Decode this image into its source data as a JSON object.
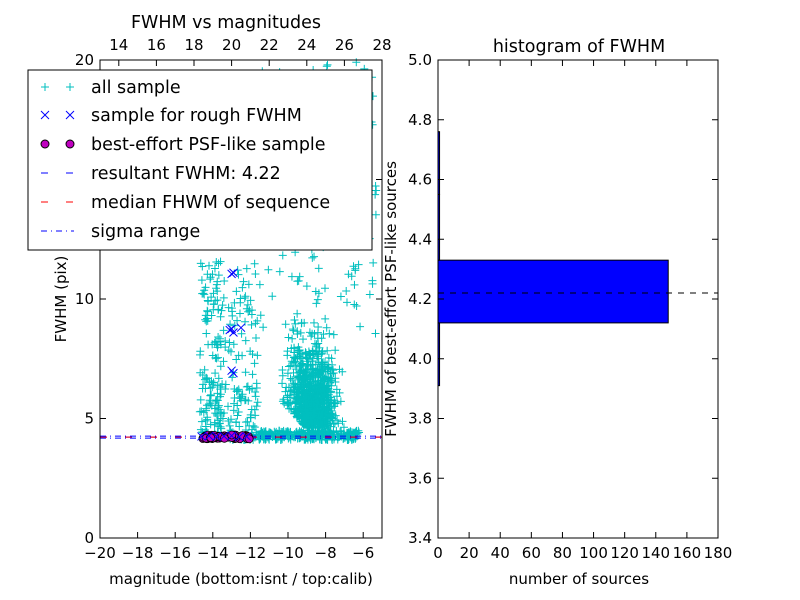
{
  "chart_data": [
    {
      "type": "scatter",
      "title": "FWHM vs magnitudes",
      "xlabel": "magnitude (bottom:isnt / top:calib)",
      "ylabel": "FWHM (pix)",
      "xlim": [
        -20,
        -5
      ],
      "ylim": [
        0,
        20
      ],
      "xticks": [
        -20,
        -18,
        -16,
        -14,
        -12,
        -10,
        -8,
        -6
      ],
      "xtick_labels": [
        "−20",
        "−18",
        "−16",
        "−14",
        "−12",
        "−10",
        "−8",
        "−6"
      ],
      "yticks": [
        0,
        5,
        10,
        15,
        20
      ],
      "ytick_labels": [
        "0",
        "5",
        "10",
        "15",
        "20"
      ],
      "top_xlim": [
        13,
        28
      ],
      "top_xticks": [
        14,
        16,
        18,
        20,
        22,
        24,
        26,
        28
      ],
      "top_xtick_labels": [
        "14",
        "16",
        "18",
        "20",
        "22",
        "24",
        "26",
        "28"
      ],
      "legend_placement": "top-left",
      "legend": [
        {
          "label": "all sample",
          "marker": "+",
          "color": "#00bfbf"
        },
        {
          "label": "sample for rough FWHM",
          "marker": "x",
          "color": "#0000ff"
        },
        {
          "label": "best-effort PSF-like sample",
          "marker": "o",
          "color": "#bf00bf"
        },
        {
          "label": "resultant FWHM: 4.22",
          "linestyle": "dashed",
          "color": "#0000ff"
        },
        {
          "label": "median FHWM of sequence",
          "linestyle": "dashed",
          "color": "#ff0000"
        },
        {
          "label": "sigma range",
          "linestyle": "dashdot",
          "color": "#0000ff"
        }
      ],
      "series": [
        {
          "name": "all sample",
          "marker": "+",
          "color": "#00bfbf",
          "clusters": [
            {
              "x_range": [
                -14.7,
                -13.3
              ],
              "y_range": [
                4.2,
                11.6
              ],
              "count": 160
            },
            {
              "x_range": [
                -13.2,
                -11.6
              ],
              "y_range": [
                4.1,
                11.5
              ],
              "count": 130
            },
            {
              "x_range": [
                -11.6,
                -6.2
              ],
              "y_range": [
                4.1,
                4.5
              ],
              "count": 320
            },
            {
              "x_range": [
                -10.4,
                -7.0
              ],
              "y_range": [
                3.2,
                9.0
              ],
              "count": 900
            },
            {
              "x_range": [
                -11.6,
                -5.3
              ],
              "y_range": [
                8.5,
                20.0
              ],
              "count": 170
            }
          ]
        },
        {
          "name": "sample for rough FWHM",
          "marker": "x",
          "color": "#0000ff",
          "points": [
            [
              -13.0,
              11.05
            ],
            [
              -12.9,
              11.1
            ],
            [
              -13.1,
              8.7
            ],
            [
              -13.0,
              8.75
            ],
            [
              -12.9,
              8.6
            ],
            [
              -12.5,
              8.8
            ],
            [
              -13.0,
              7.0
            ],
            [
              -12.9,
              6.9
            ],
            [
              -14.6,
              4.25
            ],
            [
              -14.2,
              4.27
            ],
            [
              -13.8,
              4.24
            ],
            [
              -13.4,
              4.26
            ],
            [
              -13.0,
              4.28
            ],
            [
              -12.6,
              4.23
            ],
            [
              -12.2,
              4.25
            ]
          ]
        },
        {
          "name": "best-effort PSF-like sample",
          "marker": "o",
          "color": "#bf00bf",
          "x_range": [
            -14.6,
            -12.0
          ],
          "y_range": [
            4.15,
            4.32
          ],
          "count": 60
        }
      ],
      "reference_lines": [
        {
          "name": "resultant FWHM: 4.22",
          "y": 4.22,
          "style": "dashed",
          "color": "#0000ff"
        },
        {
          "name": "median FHWM of sequence",
          "y": 4.22,
          "style": "dashed",
          "color": "#ff0000"
        },
        {
          "name": "sigma range",
          "y": 4.18,
          "style": "dashdot",
          "color": "#0000ff"
        },
        {
          "name": "sigma range",
          "y": 4.26,
          "style": "dashdot",
          "color": "#0000ff"
        }
      ],
      "grid": false
    },
    {
      "type": "bar",
      "orientation": "horizontal",
      "title": "histogram of FWHM",
      "xlabel": "number of sources",
      "ylabel": "FWHM of best-effort PSF-like sources",
      "xlim": [
        0,
        180
      ],
      "ylim": [
        3.4,
        5.0
      ],
      "xticks": [
        0,
        20,
        40,
        60,
        80,
        100,
        120,
        140,
        160,
        180
      ],
      "xtick_labels": [
        "0",
        "20",
        "40",
        "60",
        "80",
        "100",
        "120",
        "140",
        "160",
        "180"
      ],
      "yticks": [
        3.4,
        3.6,
        3.8,
        4.0,
        4.2,
        4.4,
        4.6,
        4.8,
        5.0
      ],
      "ytick_labels": [
        "3.4",
        "3.6",
        "3.8",
        "4.0",
        "4.2",
        "4.4",
        "4.6",
        "4.8",
        "5.0"
      ],
      "bar_color": "#0000ff",
      "bins": [
        {
          "y0": 3.91,
          "y1": 4.12,
          "count": 1
        },
        {
          "y0": 4.12,
          "y1": 4.33,
          "count": 148
        },
        {
          "y0": 4.33,
          "y1": 4.55,
          "count": 1
        },
        {
          "y0": 4.55,
          "y1": 4.76,
          "count": 1
        }
      ],
      "reference_lines": [
        {
          "y": 4.22,
          "style": "dashed",
          "color": "#000000"
        }
      ],
      "grid": false
    }
  ]
}
